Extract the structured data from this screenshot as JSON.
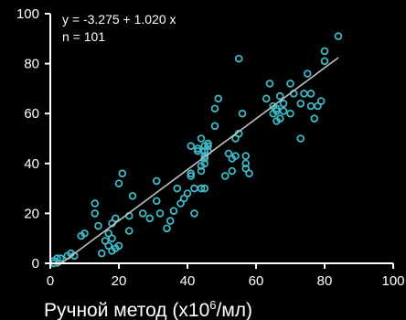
{
  "chart_data": {
    "type": "scatter",
    "title": "",
    "xlabel_main": "Ручной метод (x10",
    "xlabel_sup": "6",
    "xlabel_end": "/мл)",
    "ylabel": "",
    "xlim": [
      0,
      100
    ],
    "ylim": [
      0,
      100
    ],
    "x_ticks": [
      "0",
      "20",
      "40",
      "60",
      "80",
      "100"
    ],
    "y_ticks": [
      "0",
      "20",
      "40",
      "60",
      "80",
      "100"
    ],
    "grid": false,
    "annotation": {
      "equation": "y = -3.275 + 1.020 x",
      "n": "n = 101"
    },
    "regression": {
      "intercept": -3.275,
      "slope": 1.02,
      "x_range": [
        2,
        84
      ]
    },
    "colors": {
      "points": "#3fb8c6",
      "line": "#c0c0c0",
      "axes": "#ffffff",
      "background": "#000000"
    },
    "points": [
      [
        1,
        0
      ],
      [
        1,
        1
      ],
      [
        2,
        2
      ],
      [
        3,
        2
      ],
      [
        5,
        3
      ],
      [
        6,
        4
      ],
      [
        7,
        3
      ],
      [
        9,
        11
      ],
      [
        10,
        12
      ],
      [
        13,
        24
      ],
      [
        13,
        20
      ],
      [
        14,
        15
      ],
      [
        15,
        4
      ],
      [
        16,
        9
      ],
      [
        17,
        12
      ],
      [
        17,
        7
      ],
      [
        18,
        5
      ],
      [
        18,
        10
      ],
      [
        18,
        16
      ],
      [
        19,
        6
      ],
      [
        19,
        18
      ],
      [
        20,
        7
      ],
      [
        20,
        32
      ],
      [
        21,
        36
      ],
      [
        23,
        19
      ],
      [
        23,
        13
      ],
      [
        24,
        27
      ],
      [
        27,
        20
      ],
      [
        29,
        18
      ],
      [
        31,
        25
      ],
      [
        31,
        33
      ],
      [
        32,
        20
      ],
      [
        34,
        14
      ],
      [
        35,
        17
      ],
      [
        36,
        21
      ],
      [
        37,
        30
      ],
      [
        38,
        24
      ],
      [
        39,
        26
      ],
      [
        40,
        28
      ],
      [
        41,
        35
      ],
      [
        41,
        47
      ],
      [
        41,
        36
      ],
      [
        42,
        20
      ],
      [
        42,
        30
      ],
      [
        43,
        46
      ],
      [
        43,
        45
      ],
      [
        44,
        37
      ],
      [
        44,
        39
      ],
      [
        44,
        50
      ],
      [
        44,
        30
      ],
      [
        45,
        47
      ],
      [
        45,
        45
      ],
      [
        45,
        43
      ],
      [
        45,
        42
      ],
      [
        45,
        40
      ],
      [
        45,
        30
      ],
      [
        46,
        47
      ],
      [
        46,
        45
      ],
      [
        46,
        48
      ],
      [
        48,
        55
      ],
      [
        48,
        62
      ],
      [
        49,
        66
      ],
      [
        51,
        35
      ],
      [
        52,
        44
      ],
      [
        53,
        42
      ],
      [
        53,
        37
      ],
      [
        54,
        43
      ],
      [
        54,
        50
      ],
      [
        55,
        52
      ],
      [
        55,
        82
      ],
      [
        56,
        60
      ],
      [
        57,
        38
      ],
      [
        57,
        43
      ],
      [
        57,
        40
      ],
      [
        58,
        36
      ],
      [
        63,
        66
      ],
      [
        64,
        72
      ],
      [
        65,
        60
      ],
      [
        65,
        63
      ],
      [
        66,
        61
      ],
      [
        66,
        57
      ],
      [
        66,
        62
      ],
      [
        67,
        58
      ],
      [
        67,
        67
      ],
      [
        68,
        61
      ],
      [
        68,
        64
      ],
      [
        70,
        60
      ],
      [
        70,
        72
      ],
      [
        71,
        68
      ],
      [
        73,
        50
      ],
      [
        73,
        64
      ],
      [
        74,
        68
      ],
      [
        75,
        76
      ],
      [
        76,
        68
      ],
      [
        76,
        63
      ],
      [
        77,
        58
      ],
      [
        78,
        63
      ],
      [
        79,
        65
      ],
      [
        80,
        81
      ],
      [
        80,
        85
      ],
      [
        84,
        91
      ]
    ]
  }
}
